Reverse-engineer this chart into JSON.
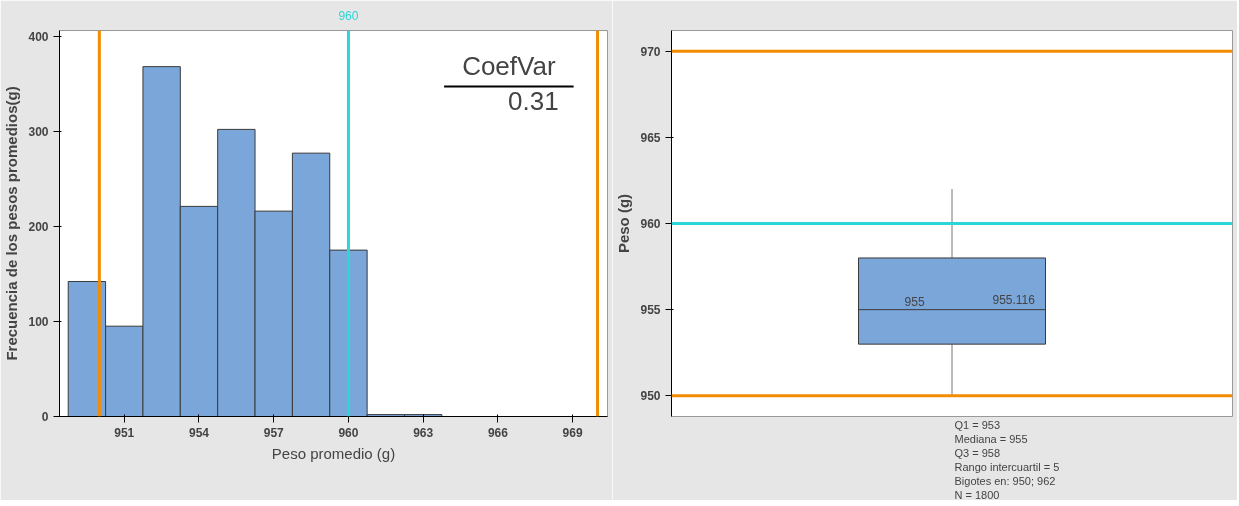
{
  "chart_data": [
    {
      "type": "histogram",
      "xlabel": "Peso promedio (g)",
      "ylabel": "Frecuencia de los pesos promedios(g)",
      "bins": [
        948.75,
        950.25,
        951.75,
        953.25,
        954.75,
        956.25,
        957.75,
        959.25,
        960.75,
        962.25,
        963.75
      ],
      "values": [
        142,
        95,
        368,
        221,
        302,
        216,
        277,
        175,
        2,
        2
      ],
      "color": "#7ba6d9",
      "xlim": [
        948.4,
        970.4
      ],
      "xticks": [
        951,
        954,
        957,
        960,
        963,
        966,
        969
      ],
      "ylim": [
        0,
        406
      ],
      "yticks": [
        0,
        100,
        200,
        300,
        400
      ],
      "ref_lines": [
        {
          "axis": "x",
          "value": 950,
          "color": "#f28c00"
        },
        {
          "axis": "x",
          "value": 960,
          "label": "960",
          "color": "#2dd6d6"
        },
        {
          "axis": "x",
          "value": 970,
          "color": "#f28c00"
        }
      ],
      "annotations": [
        "CoefVar",
        "0.31"
      ],
      "grid": false
    },
    {
      "type": "box",
      "ylabel": "Peso (g)",
      "categories": [
        null
      ],
      "boxes": [
        {
          "low": 950,
          "q1": 953,
          "median": 955,
          "q3": 958,
          "high": 962
        }
      ],
      "color": "#7ba6d9",
      "ylim": [
        948.8,
        971.2
      ],
      "yticks": [
        950,
        955,
        960,
        965,
        970
      ],
      "ref_lines": [
        {
          "axis": "y",
          "value": 970,
          "color": "#f28c00"
        },
        {
          "axis": "y",
          "value": 960,
          "color": "#2dd6d6"
        },
        {
          "axis": "y",
          "value": 950,
          "color": "#f28c00"
        }
      ],
      "annotations": [
        {
          "text": "955",
          "y": 955
        },
        {
          "text": "955.116",
          "y": 955.116
        },
        "Q1 = 953",
        "Mediana = 955",
        "Q3 = 958",
        "Rango intercuartil = 5",
        "Bigotes en: 950; 962",
        "N = 1800"
      ],
      "tick_labels": "y",
      "grid": false
    }
  ]
}
